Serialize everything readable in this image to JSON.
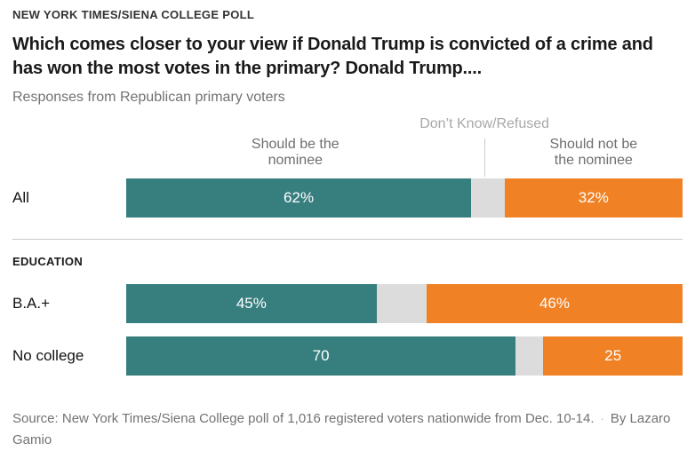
{
  "kicker": "NEW YORK TIMES/SIENA COLLEGE POLL",
  "title": "Which comes closer to your view if Donald Trump is convicted of a crime and has won the most votes in the primary? Donald Trump....",
  "subtitle": "Responses from Republican primary voters",
  "chart_data": {
    "type": "bar",
    "orientation": "horizontal",
    "stacked": true,
    "unit": "percent",
    "xlim": [
      0,
      100
    ],
    "categories": [
      "All",
      "B.A.+",
      "No college"
    ],
    "series": [
      {
        "name": "Should be the nominee",
        "values": [
          62,
          45,
          70
        ],
        "color": "#377e7e"
      },
      {
        "name": "Don’t Know/Refused",
        "values": [
          6,
          9,
          5
        ],
        "color": "#dcdcdc"
      },
      {
        "name": "Should not be the nominee",
        "values": [
          32,
          46,
          25
        ],
        "color": "#f08124"
      }
    ],
    "colors": {
      "nominee": "#377e7e",
      "dk": "#dcdcdc",
      "not_nominee": "#f08124"
    },
    "column_headers": {
      "dk": "Don’t Know/Refused",
      "nominee": "Should be the\nnominee",
      "not_nominee": "Should not be\nthe nominee"
    },
    "section_label": "EDUCATION",
    "rows": [
      {
        "group": "All",
        "values": {
          "nominee": 62,
          "dk": 6,
          "not_nominee": 32
        },
        "labels": {
          "nominee": "62%",
          "not_nominee": "32%"
        }
      },
      {
        "group": "B.A.+",
        "values": {
          "nominee": 45,
          "dk": 9,
          "not_nominee": 46
        },
        "labels": {
          "nominee": "45%",
          "not_nominee": "46%"
        }
      },
      {
        "group": "No college",
        "values": {
          "nominee": 70,
          "dk": 5,
          "not_nominee": 25
        },
        "labels": {
          "nominee": "70",
          "not_nominee": "25"
        }
      }
    ]
  },
  "source": {
    "text": "Source: New York Times/Siena College poll of 1,016 registered voters nationwide from Dec. 10-14.",
    "separator": "·",
    "byline": "By Lazaro Gamio"
  }
}
